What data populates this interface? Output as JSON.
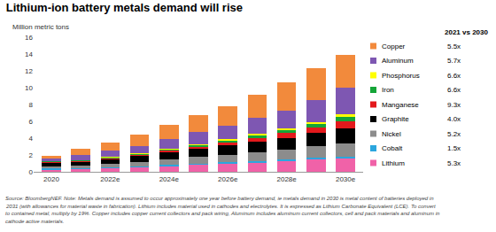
{
  "chart_data": {
    "type": "bar",
    "title": "Lithium-ion battery metals demand will rise",
    "y_label": "Million metric tons",
    "categories": [
      "2020",
      null,
      "2022e",
      null,
      "2024e",
      null,
      "2026e",
      null,
      "2028e",
      null,
      "2030e"
    ],
    "stacked": true,
    "grid": false,
    "legend": "right",
    "legend_title": "2021 vs 2030",
    "ylim": [
      0,
      16
    ],
    "yticks": [
      0,
      2,
      4,
      6,
      8,
      10,
      12,
      14,
      16
    ],
    "series": [
      {
        "name": "Lithium",
        "color": "#f062a8",
        "ratio_label": "5.3x",
        "values": [
          0.25,
          0.3,
          0.4,
          0.5,
          0.65,
          0.8,
          0.95,
          1.1,
          1.25,
          1.45,
          1.6
        ]
      },
      {
        "name": "Cobalt",
        "color": "#2ba6de",
        "ratio_label": "1.5x",
        "values": [
          0.12,
          0.13,
          0.14,
          0.15,
          0.16,
          0.17,
          0.17,
          0.18,
          0.18,
          0.19,
          0.2
        ]
      },
      {
        "name": "Nickel",
        "color": "#8c8c8c",
        "ratio_label": "5.2x",
        "values": [
          0.3,
          0.31,
          0.4,
          0.5,
          0.65,
          0.8,
          0.9,
          1.05,
          1.2,
          1.4,
          1.6
        ]
      },
      {
        "name": "Graphite",
        "color": "#000000",
        "ratio_label": "4.0x",
        "values": [
          0.4,
          0.45,
          0.55,
          0.7,
          0.85,
          0.95,
          1.1,
          1.25,
          1.4,
          1.6,
          1.8
        ]
      },
      {
        "name": "Manganese",
        "color": "#e3191c",
        "ratio_label": "9.3x",
        "values": [
          0.08,
          0.09,
          0.12,
          0.15,
          0.2,
          0.25,
          0.35,
          0.45,
          0.55,
          0.65,
          0.8
        ]
      },
      {
        "name": "Iron",
        "color": "#15a538",
        "ratio_label": "6.6x",
        "values": [
          0.07,
          0.08,
          0.1,
          0.13,
          0.17,
          0.2,
          0.25,
          0.3,
          0.35,
          0.4,
          0.5
        ]
      },
      {
        "name": "Phosphorus",
        "color": "#ffff00",
        "ratio_label": "6.6x",
        "values": [
          0.04,
          0.05,
          0.06,
          0.07,
          0.09,
          0.11,
          0.13,
          0.16,
          0.2,
          0.25,
          0.3
        ]
      },
      {
        "name": "Aluminum",
        "color": "#7e57b2",
        "ratio_label": "5.7x",
        "values": [
          0.3,
          0.55,
          0.73,
          0.9,
          1.15,
          1.42,
          1.65,
          1.91,
          2.15,
          2.56,
          3.2
        ]
      },
      {
        "name": "Copper",
        "color": "#f28a3c",
        "ratio_label": "5.5x",
        "values": [
          0.34,
          0.74,
          1.0,
          1.3,
          1.68,
          2.0,
          2.3,
          2.8,
          3.32,
          3.8,
          3.9
        ]
      }
    ],
    "note": [
      "Source: BloombergNEF. Note: Metals demand is assumed to occur approximately one year before battery demand, ie metals demand in 2030 is metal content of batteries deployed in",
      "2031 (with allowances for material waste in fabrication). Lithium includes material used in cathodes and electrolytes. It is expressed as Lithium Carbonate Equivalent (LCE). To convert",
      "to contained metal, multiply by 19%. Copper includes copper current collectors and pack wiring, Aluminum includes aluminum current collectors, cell and pack materials and aluminum in",
      "cathode active materials."
    ]
  }
}
